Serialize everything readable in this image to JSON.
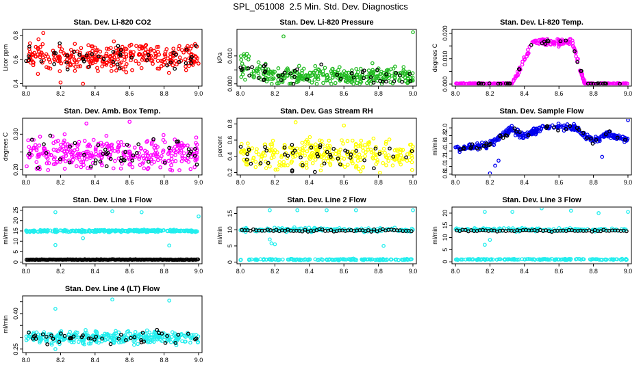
{
  "page": {
    "title": "SPL_051008  2.5 Min. Std. Dev. Diagnostics"
  },
  "colors": {
    "red": "#ff0000",
    "green": "#22bb22",
    "magenta": "#ff00ff",
    "yellow": "#ffff00",
    "blue": "#0000ee",
    "cyan": "#22eeee",
    "overlay": "#000000"
  },
  "chart_data": [
    {
      "type": "scatter",
      "title": "Stan. Dev. Li-820 CO2",
      "ylabel": "Licor ppm",
      "color": "red",
      "xlim": [
        7.98,
        9.02
      ],
      "ylim": [
        0.38,
        0.85
      ],
      "xticks": [
        8.0,
        8.2,
        8.4,
        8.6,
        8.8,
        9.0
      ],
      "xtick_labels": [
        "8.0",
        "8.2",
        "8.4",
        "8.6",
        "8.8",
        "9.0"
      ],
      "yticks": [
        0.4,
        0.6,
        0.8
      ],
      "ytick_labels": [
        "0.4",
        "0.6",
        "0.8"
      ],
      "generator": {
        "kind": "band",
        "n": 330,
        "base": 0.62,
        "spread": 0.09,
        "seed": 11
      },
      "overlay": {
        "n": 45,
        "seed": 12
      },
      "outliers": [
        [
          8.2,
          0.41
        ],
        [
          8.33,
          0.4
        ],
        [
          8.1,
          0.82
        ]
      ]
    },
    {
      "type": "scatter",
      "title": "Stan. Dev. Li-820 Pressure",
      "ylabel": "kPa",
      "color": "green",
      "xlim": [
        7.98,
        9.02
      ],
      "ylim": [
        -0.0008,
        0.0195
      ],
      "xticks": [
        8.0,
        8.2,
        8.4,
        8.6,
        8.8,
        9.0
      ],
      "xtick_labels": [
        "8.0",
        "8.2",
        "8.4",
        "8.6",
        "8.8",
        "9.0"
      ],
      "yticks": [
        0.0,
        0.005,
        0.01
      ],
      "ytick_labels": [
        "0.000",
        "",
        "0.010"
      ],
      "generator": {
        "kind": "pressure",
        "n": 330,
        "seed": 21
      },
      "overlay": {
        "n": 45,
        "seed": 22
      },
      "outliers": [
        [
          9.0,
          0.0185
        ],
        [
          8.25,
          0.017
        ]
      ]
    },
    {
      "type": "scatter",
      "title": "Stan. Dev. Li-820 Temp.",
      "ylabel": "degrees C",
      "color": "magenta",
      "xlim": [
        7.98,
        9.02
      ],
      "ylim": [
        -0.0008,
        0.0215
      ],
      "xticks": [
        8.0,
        8.2,
        8.4,
        8.6,
        8.8,
        9.0
      ],
      "xtick_labels": [
        "8.0",
        "8.2",
        "8.4",
        "8.6",
        "8.8",
        "9.0"
      ],
      "yticks": [
        0.0,
        0.005,
        0.01,
        0.015,
        0.02
      ],
      "ytick_labels": [
        "0.000",
        "",
        "0.010",
        "",
        "0.020"
      ],
      "generator": {
        "kind": "plateau",
        "n": 300,
        "seed": 31
      },
      "overlay": {
        "n": 35,
        "seed": 32
      },
      "outliers": []
    },
    {
      "type": "scatter",
      "title": "Stan. Dev. Amb. Box Temp.",
      "ylabel": "degrees C",
      "color": "magenta",
      "xlim": [
        7.98,
        9.02
      ],
      "ylim": [
        0.185,
        0.345
      ],
      "xticks": [
        8.0,
        8.2,
        8.4,
        8.6,
        8.8,
        9.0
      ],
      "xtick_labels": [
        "8.0",
        "8.2",
        "8.4",
        "8.6",
        "8.8",
        "9.0"
      ],
      "yticks": [
        0.2,
        0.25,
        0.3
      ],
      "ytick_labels": [
        "0.20",
        "",
        "0.30"
      ],
      "generator": {
        "kind": "band",
        "n": 330,
        "base": 0.245,
        "spread": 0.035,
        "seed": 41
      },
      "overlay": {
        "n": 45,
        "seed": 42
      },
      "outliers": [
        [
          8.6,
          0.335
        ],
        [
          8.35,
          0.33
        ]
      ]
    },
    {
      "type": "scatter",
      "title": "Stan. Dev. Gas Stream RH",
      "ylabel": "percent",
      "color": "yellow",
      "xlim": [
        7.98,
        9.02
      ],
      "ylim": [
        0.17,
        0.87
      ],
      "xticks": [
        8.0,
        8.2,
        8.4,
        8.6,
        8.8,
        9.0
      ],
      "xtick_labels": [
        "8.0",
        "8.2",
        "8.4",
        "8.6",
        "8.8",
        "9.0"
      ],
      "yticks": [
        0.2,
        0.4,
        0.6,
        0.8
      ],
      "ytick_labels": [
        "0.2",
        "0.4",
        "0.6",
        "0.8"
      ],
      "generator": {
        "kind": "band",
        "n": 300,
        "base": 0.42,
        "spread": 0.15,
        "seed": 51
      },
      "overlay": {
        "n": 45,
        "seed": 52
      },
      "outliers": [
        [
          8.32,
          0.82
        ],
        [
          8.6,
          0.78
        ]
      ]
    },
    {
      "type": "scatter",
      "title": "Stan. Dev. Sample Flow",
      "ylabel": "ml/min",
      "color": "blue",
      "xlim": [
        7.98,
        9.02
      ],
      "ylim": [
        0.78,
        2.25
      ],
      "xticks": [
        8.0,
        8.2,
        8.4,
        8.6,
        8.8,
        9.0
      ],
      "xtick_labels": [
        "8.0",
        "8.2",
        "8.4",
        "8.6",
        "8.8",
        "9.0"
      ],
      "yticks": [
        0.8,
        1.0,
        1.2,
        1.4,
        1.6,
        1.8,
        2.0
      ],
      "ytick_labels": [
        "0.8",
        "1.0",
        "1.2",
        "1.4",
        "1.6",
        "1.8",
        "2.0"
      ],
      "generator": {
        "kind": "flow",
        "n": 330,
        "seed": 61
      },
      "overlay": {
        "n": 40,
        "seed": 62
      },
      "outliers": [
        [
          8.2,
          0.82
        ],
        [
          8.23,
          1.02
        ],
        [
          8.25,
          1.15
        ],
        [
          9.0,
          2.2
        ],
        [
          8.85,
          1.25
        ]
      ]
    },
    {
      "type": "scatter",
      "title": "Stan. Dev. Line 1 Flow",
      "ylabel": "ml/min",
      "color": "cyan",
      "xlim": [
        7.98,
        9.02
      ],
      "ylim": [
        -0.8,
        26.5
      ],
      "xticks": [
        8.0,
        8.2,
        8.4,
        8.6,
        8.8,
        9.0
      ],
      "xtick_labels": [
        "8.0",
        "8.2",
        "8.4",
        "8.6",
        "8.8",
        "9.0"
      ],
      "yticks": [
        0,
        5,
        10,
        15,
        20,
        25
      ],
      "ytick_labels": [
        "0",
        "5",
        "10",
        "15",
        "20",
        "25"
      ],
      "generator": {
        "kind": "flat",
        "n": 300,
        "base": 15.0,
        "spread": 0.45,
        "seed": 71
      },
      "overlay": {
        "n": 160,
        "seed": 72,
        "flat": 1.2,
        "spread": 0.15
      },
      "outliers": [
        [
          8.17,
          8.2
        ],
        [
          8.17,
          24.0
        ],
        [
          8.33,
          11.5
        ],
        [
          8.5,
          24.5
        ],
        [
          8.67,
          24.0
        ],
        [
          8.83,
          8.0
        ],
        [
          9.0,
          22.0
        ]
      ]
    },
    {
      "type": "scatter",
      "title": "Stan. Dev. Line 2 Flow",
      "ylabel": "ml/min",
      "color": "cyan",
      "xlim": [
        7.98,
        9.02
      ],
      "ylim": [
        -0.5,
        17.0
      ],
      "xticks": [
        8.0,
        8.2,
        8.4,
        8.6,
        8.8,
        9.0
      ],
      "xtick_labels": [
        "8.0",
        "8.2",
        "8.4",
        "8.6",
        "8.8",
        "9.0"
      ],
      "yticks": [
        0,
        5,
        10,
        15
      ],
      "ytick_labels": [
        "0",
        "5",
        "10",
        "15"
      ],
      "generator": {
        "kind": "twoband",
        "n": 300,
        "base": 10.0,
        "spread": 0.55,
        "base2": 0.8,
        "spread2": 0.2,
        "seed": 81
      },
      "overlay": {
        "n": 60,
        "seed": 82,
        "flat": 9.8,
        "spread": 0.3
      },
      "outliers": [
        [
          8.17,
          7.0
        ],
        [
          8.18,
          5.8
        ],
        [
          8.2,
          5.5
        ],
        [
          8.17,
          16.0
        ],
        [
          8.33,
          16.0
        ],
        [
          8.5,
          16.0
        ],
        [
          8.67,
          16.0
        ],
        [
          8.83,
          5.0
        ],
        [
          9.0,
          16.0
        ]
      ]
    },
    {
      "type": "scatter",
      "title": "Stan. Dev. Line 3 Flow",
      "ylabel": "ml/min",
      "color": "cyan",
      "xlim": [
        7.98,
        9.02
      ],
      "ylim": [
        -0.8,
        22.5
      ],
      "xticks": [
        8.0,
        8.2,
        8.4,
        8.6,
        8.8,
        9.0
      ],
      "xtick_labels": [
        "8.0",
        "8.2",
        "8.4",
        "8.6",
        "8.8",
        "9.0"
      ],
      "yticks": [
        0,
        5,
        10,
        15,
        20
      ],
      "ytick_labels": [
        "0",
        "5",
        "10",
        "15",
        "20"
      ],
      "generator": {
        "kind": "twoband",
        "n": 300,
        "base": 13.2,
        "spread": 0.55,
        "base2": 1.0,
        "spread2": 0.2,
        "seed": 91
      },
      "overlay": {
        "n": 60,
        "seed": 92,
        "flat": 12.8,
        "spread": 0.4
      },
      "outliers": [
        [
          8.17,
          7.0
        ],
        [
          8.2,
          9.0
        ],
        [
          8.17,
          20.5
        ],
        [
          8.33,
          20.5
        ],
        [
          8.5,
          22.0
        ],
        [
          8.67,
          21.0
        ],
        [
          8.83,
          20.0
        ],
        [
          9.0,
          20.5
        ]
      ]
    },
    {
      "type": "scatter",
      "title": "Stan. Dev. Line 4 (LT) Flow",
      "ylabel": "ml/min",
      "color": "cyan",
      "xlim": [
        7.98,
        9.02
      ],
      "ylim": [
        0.235,
        0.475
      ],
      "xticks": [
        8.0,
        8.2,
        8.4,
        8.6,
        8.8,
        9.0
      ],
      "xtick_labels": [
        "8.0",
        "8.2",
        "8.4",
        "8.6",
        "8.8",
        "9.0"
      ],
      "yticks": [
        0.25,
        0.3,
        0.35,
        0.4,
        0.45
      ],
      "ytick_labels": [
        "0.25",
        "",
        "",
        "0.40",
        ""
      ],
      "generator": {
        "kind": "band",
        "n": 330,
        "base": 0.3,
        "spread": 0.022,
        "seed": 101
      },
      "overlay": {
        "n": 45,
        "seed": 102
      },
      "outliers": [
        [
          8.17,
          0.42
        ],
        [
          8.5,
          0.46
        ],
        [
          8.83,
          0.455
        ],
        [
          8.17,
          0.25
        ]
      ]
    }
  ]
}
